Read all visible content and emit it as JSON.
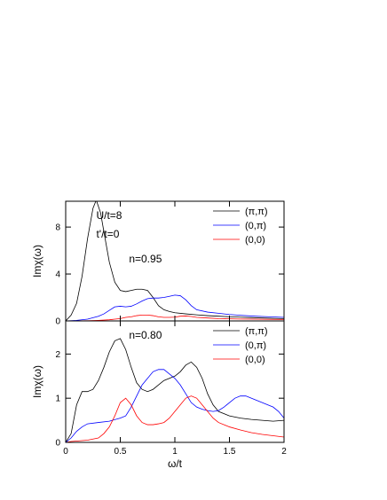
{
  "chart_data": [
    {
      "type": "line",
      "id": "top",
      "xlabel": "",
      "ylabel": "Imχ(ω)",
      "xlim": [
        0,
        2
      ],
      "ylim": [
        0,
        10.2
      ],
      "yticks": [
        0,
        4,
        8
      ],
      "yticklabels": [
        "0",
        "4",
        "8"
      ],
      "xticks": [
        0,
        0.5,
        1,
        1.5,
        2
      ],
      "xticklabels": [],
      "grid": false,
      "legend_position": "top-right",
      "annotations": [
        {
          "text": "U/t=8",
          "x": 0.28,
          "y": 8.7
        },
        {
          "text": "t'/t=0",
          "x": 0.28,
          "y": 7.1
        },
        {
          "text": "n=0.95",
          "x": 0.58,
          "y": 5.0
        }
      ],
      "series": [
        {
          "name": "(π,π)",
          "color": "#000000",
          "x": [
            0,
            0.05,
            0.1,
            0.15,
            0.2,
            0.25,
            0.28,
            0.32,
            0.35,
            0.4,
            0.45,
            0.5,
            0.55,
            0.6,
            0.65,
            0.7,
            0.75,
            0.8,
            0.85,
            0.9,
            0.95,
            1.0,
            1.1,
            1.2,
            1.3,
            1.4,
            1.5,
            1.6,
            1.7,
            1.8,
            1.9,
            2.0
          ],
          "y": [
            0,
            0.5,
            1.5,
            3.8,
            7.0,
            9.6,
            10.3,
            9.2,
            7.6,
            5.0,
            3.3,
            2.6,
            2.5,
            2.6,
            2.7,
            2.7,
            2.6,
            2.0,
            1.3,
            0.95,
            0.8,
            0.7,
            0.6,
            0.52,
            0.45,
            0.4,
            0.36,
            0.32,
            0.28,
            0.25,
            0.22,
            0.2
          ]
        },
        {
          "name": "(0,π)",
          "color": "#0000ff",
          "x": [
            0,
            0.1,
            0.2,
            0.3,
            0.35,
            0.4,
            0.45,
            0.5,
            0.55,
            0.6,
            0.65,
            0.7,
            0.75,
            0.8,
            0.85,
            0.9,
            0.95,
            1.0,
            1.05,
            1.1,
            1.15,
            1.2,
            1.3,
            1.4,
            1.5,
            1.6,
            1.7,
            1.8,
            1.9,
            2.0
          ],
          "y": [
            0,
            0.05,
            0.15,
            0.4,
            0.6,
            0.9,
            1.2,
            1.25,
            1.2,
            1.25,
            1.45,
            1.7,
            1.9,
            1.95,
            1.95,
            2.0,
            2.1,
            2.2,
            2.15,
            1.8,
            1.3,
            0.95,
            0.75,
            0.65,
            0.55,
            0.48,
            0.42,
            0.38,
            0.34,
            0.3
          ]
        },
        {
          "name": "(0,0)",
          "color": "#ff0000",
          "x": [
            0,
            0.2,
            0.3,
            0.4,
            0.5,
            0.55,
            0.6,
            0.65,
            0.7,
            0.75,
            0.8,
            0.85,
            0.9,
            0.95,
            1.0,
            1.05,
            1.1,
            1.15,
            1.2,
            1.3,
            1.4,
            1.5,
            1.6,
            1.7,
            1.8,
            1.9,
            2.0
          ],
          "y": [
            0,
            0.02,
            0.05,
            0.1,
            0.2,
            0.3,
            0.35,
            0.45,
            0.5,
            0.5,
            0.45,
            0.35,
            0.3,
            0.3,
            0.32,
            0.4,
            0.42,
            0.38,
            0.3,
            0.25,
            0.2,
            0.18,
            0.16,
            0.15,
            0.14,
            0.13,
            0.12
          ]
        }
      ]
    },
    {
      "type": "line",
      "id": "bottom",
      "xlabel": "ω/t",
      "ylabel": "Imχ(ω)",
      "xlim": [
        0,
        2
      ],
      "ylim": [
        0,
        2.75
      ],
      "yticks": [
        0,
        1,
        2
      ],
      "yticklabels": [
        "0",
        "1",
        "2"
      ],
      "xticks": [
        0,
        0.5,
        1,
        1.5,
        2
      ],
      "xticklabels": [
        "0",
        "0.5",
        "1",
        "1.5",
        "2"
      ],
      "grid": false,
      "legend_position": "top-right",
      "annotations": [
        {
          "text": "n=0.80",
          "x": 0.58,
          "y": 2.35
        }
      ],
      "series": [
        {
          "name": "(π,π)",
          "color": "#000000",
          "x": [
            0,
            0.05,
            0.1,
            0.15,
            0.2,
            0.25,
            0.3,
            0.35,
            0.4,
            0.45,
            0.5,
            0.55,
            0.6,
            0.65,
            0.7,
            0.75,
            0.8,
            0.85,
            0.9,
            0.95,
            1.0,
            1.05,
            1.1,
            1.15,
            1.2,
            1.25,
            1.3,
            1.35,
            1.4,
            1.5,
            1.6,
            1.7,
            1.8,
            1.9,
            2.0
          ],
          "y": [
            0,
            0.2,
            0.85,
            1.15,
            1.15,
            1.2,
            1.4,
            1.7,
            2.05,
            2.3,
            2.35,
            2.1,
            1.7,
            1.35,
            1.2,
            1.15,
            1.2,
            1.3,
            1.4,
            1.45,
            1.5,
            1.6,
            1.75,
            1.82,
            1.7,
            1.45,
            1.1,
            0.85,
            0.7,
            0.6,
            0.55,
            0.52,
            0.5,
            0.48,
            0.5
          ]
        },
        {
          "name": "(0,π)",
          "color": "#0000ff",
          "x": [
            0,
            0.05,
            0.1,
            0.15,
            0.2,
            0.3,
            0.4,
            0.5,
            0.55,
            0.6,
            0.65,
            0.7,
            0.75,
            0.8,
            0.85,
            0.9,
            0.95,
            1.0,
            1.05,
            1.1,
            1.15,
            1.2,
            1.25,
            1.3,
            1.35,
            1.4,
            1.45,
            1.5,
            1.55,
            1.6,
            1.65,
            1.7,
            1.75,
            1.8,
            1.85,
            1.9,
            1.95,
            2.0
          ],
          "y": [
            0,
            0.1,
            0.25,
            0.35,
            0.42,
            0.45,
            0.48,
            0.55,
            0.6,
            0.8,
            1.05,
            1.3,
            1.45,
            1.6,
            1.65,
            1.65,
            1.55,
            1.45,
            1.3,
            1.1,
            0.9,
            0.8,
            0.75,
            0.72,
            0.7,
            0.72,
            0.8,
            0.9,
            1.0,
            1.05,
            1.05,
            1.0,
            0.95,
            0.9,
            0.85,
            0.8,
            0.7,
            0.55
          ]
        },
        {
          "name": "(0,0)",
          "color": "#ff0000",
          "x": [
            0,
            0.05,
            0.1,
            0.2,
            0.3,
            0.35,
            0.4,
            0.45,
            0.5,
            0.55,
            0.6,
            0.65,
            0.7,
            0.75,
            0.8,
            0.85,
            0.9,
            0.95,
            1.0,
            1.05,
            1.1,
            1.15,
            1.2,
            1.25,
            1.3,
            1.35,
            1.4,
            1.5,
            1.6,
            1.7,
            1.8,
            1.9,
            2.0
          ],
          "y": [
            0,
            0.02,
            0.03,
            0.05,
            0.1,
            0.2,
            0.35,
            0.6,
            0.9,
            1.0,
            0.85,
            0.6,
            0.45,
            0.4,
            0.4,
            0.42,
            0.45,
            0.55,
            0.7,
            0.85,
            1.0,
            1.05,
            1.0,
            0.85,
            0.7,
            0.55,
            0.45,
            0.35,
            0.28,
            0.22,
            0.18,
            0.15,
            0.12
          ]
        }
      ]
    }
  ]
}
